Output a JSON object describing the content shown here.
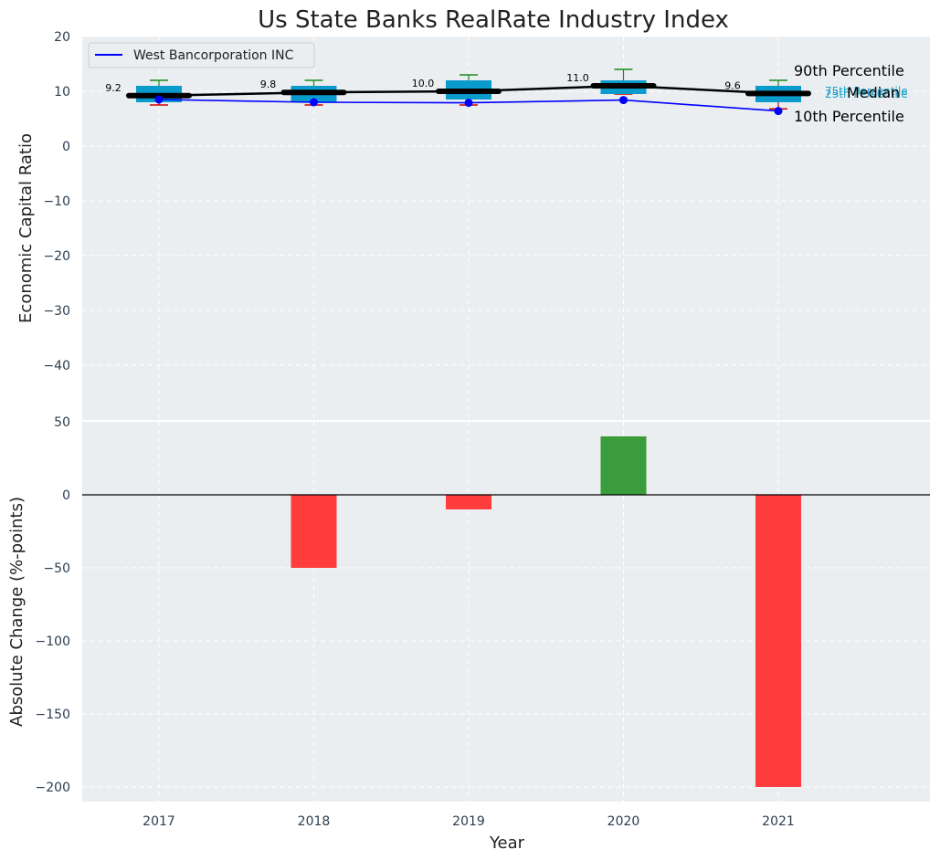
{
  "chart_data": [
    {
      "type": "box",
      "title": "Us State Banks RealRate Industry Index",
      "ylabel": "Economic Capital Ratio",
      "ylim": [
        -50,
        20
      ],
      "yticks": [
        20,
        10,
        0,
        -10,
        -20,
        -30,
        -40
      ],
      "years": [
        "2017",
        "2018",
        "2019",
        "2020",
        "2021"
      ],
      "boxes": [
        {
          "p10": 7.5,
          "p25": 8.0,
          "median": 9.2,
          "p75": 11.0,
          "p90": 12.0
        },
        {
          "p10": 7.5,
          "p25": 8.0,
          "median": 9.8,
          "p75": 11.0,
          "p90": 12.0
        },
        {
          "p10": 7.5,
          "p25": 8.5,
          "median": 10.0,
          "p75": 12.0,
          "p90": 13.0
        },
        {
          "p10": 9.5,
          "p25": 9.5,
          "median": 11.0,
          "p75": 12.0,
          "p90": 14.0
        },
        {
          "p10": 6.8,
          "p25": 8.0,
          "median": 9.6,
          "p75": 11.0,
          "p90": 12.0
        }
      ],
      "median_labels": [
        "9.2",
        "9.8",
        "10.0",
        "11.0",
        "9.6"
      ],
      "series": [
        {
          "name": "West Bancorporation INC",
          "values": [
            8.5,
            8.0,
            7.9,
            8.4,
            6.4
          ],
          "color": "#0000ff"
        }
      ],
      "annotations": {
        "p90": "90th Percentile",
        "p75": "75th Percentile",
        "median": "Median",
        "p25": "25th Percentile",
        "p10": "10th Percentile"
      },
      "legend_position": "top-left"
    },
    {
      "type": "bar",
      "xlabel": "Year",
      "ylabel": "Absolute Change (%-points)",
      "ylim": [
        -210,
        50
      ],
      "yticks": [
        50,
        0,
        -50,
        -100,
        -150,
        -200
      ],
      "categories": [
        "2017",
        "2018",
        "2019",
        "2020",
        "2021"
      ],
      "values": [
        0,
        -50,
        -10,
        40,
        -200
      ],
      "colors": {
        "positive": "#3a9c3a",
        "negative": "#ff3d3d"
      }
    }
  ],
  "colors": {
    "plot_bg": "#eaeef0",
    "box_fill": "#0a9bcd",
    "median_line": "#000000",
    "whisker_top": "#1a8a1a",
    "whisker_bottom": "#cc0000"
  }
}
